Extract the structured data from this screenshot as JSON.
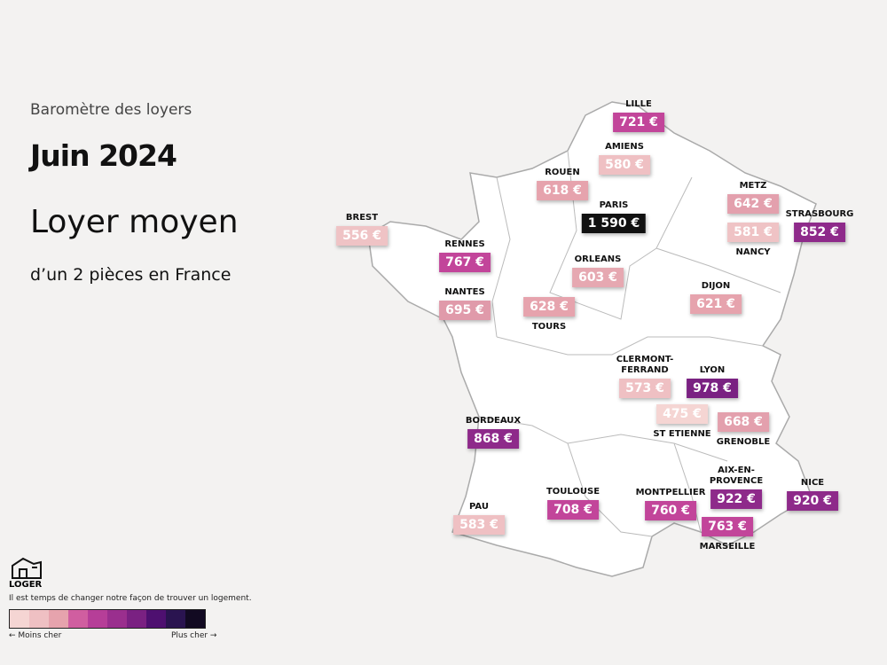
{
  "header": {
    "kicker": "Baromètre des loyers",
    "date": "Juin 2024",
    "title": "Loyer moyen",
    "subtitle": "d’un 2 pièces en France"
  },
  "cities": [
    {
      "name": "LILLE",
      "price": "721 €",
      "color": "#c2459a"
    },
    {
      "name": "AMIENS",
      "price": "580 €",
      "color": "#efc0c3"
    },
    {
      "name": "ROUEN",
      "price": "618 €",
      "color": "#e6a3ad"
    },
    {
      "name": "PARIS",
      "price": "1 590 €",
      "color": "#111111"
    },
    {
      "name": "METZ",
      "price": "642 €",
      "color": "#e3a0ad"
    },
    {
      "name": "NANCY",
      "price": "581 €",
      "color": "#efc3c5"
    },
    {
      "name": "STRASBOURG",
      "price": "852 €",
      "color": "#8e2a8a"
    },
    {
      "name": "BREST",
      "price": "556 €",
      "color": "#efc3c5"
    },
    {
      "name": "RENNES",
      "price": "767 €",
      "color": "#c2459a"
    },
    {
      "name": "ORLEANS",
      "price": "603 €",
      "color": "#e6a8b1"
    },
    {
      "name": "NANTES",
      "price": "695 €",
      "color": "#e09aaa"
    },
    {
      "name": "TOURS",
      "price": "628 €",
      "color": "#e6a3ad"
    },
    {
      "name": "DIJON",
      "price": "621 €",
      "color": "#e6a3ad"
    },
    {
      "name": "CLERMONT-FERRAND",
      "price": "573 €",
      "color": "#efc0c3"
    },
    {
      "name": "LYON",
      "price": "978 €",
      "color": "#7a2182"
    },
    {
      "name": "ST ETIENNE",
      "price": "475 €",
      "color": "#f5d5d3"
    },
    {
      "name": "GRENOBLE",
      "price": "668 €",
      "color": "#e3a0ad"
    },
    {
      "name": "BORDEAUX",
      "price": "868 €",
      "color": "#8e2a8a"
    },
    {
      "name": "AIX-EN-PROVENCE",
      "price": "922 €",
      "color": "#8e2a8a"
    },
    {
      "name": "NICE",
      "price": "920 €",
      "color": "#8e2a8a"
    },
    {
      "name": "TOULOUSE",
      "price": "708 €",
      "color": "#c2459a"
    },
    {
      "name": "MONTPELLIER",
      "price": "760 €",
      "color": "#c2459a"
    },
    {
      "name": "MARSEILLE",
      "price": "763 €",
      "color": "#c2459a"
    },
    {
      "name": "PAU",
      "price": "583 €",
      "color": "#efc0c3"
    }
  ],
  "footer": {
    "logo": "LOGER",
    "tagline": "Il est temps de changer notre façon de trouver un logement.",
    "scale_colors": [
      "#f5d5d3",
      "#efc0c3",
      "#e6a3ad",
      "#d05ea0",
      "#b63e98",
      "#9a2f8e",
      "#7a2182",
      "#4e1070",
      "#2a1450",
      "#120a22"
    ],
    "low_label": "← Moins cher",
    "high_label": "Plus cher →"
  }
}
